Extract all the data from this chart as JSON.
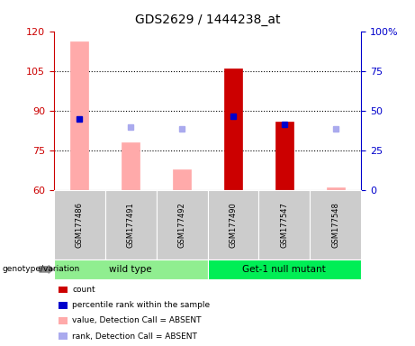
{
  "title": "GDS2629 / 1444238_at",
  "samples": [
    "GSM177486",
    "GSM177491",
    "GSM177492",
    "GSM177490",
    "GSM177547",
    "GSM177548"
  ],
  "groups": [
    {
      "name": "wild type",
      "color": "#90ee90",
      "samples": [
        0,
        1,
        2
      ]
    },
    {
      "name": "Get-1 null mutant",
      "color": "#00ee55",
      "samples": [
        3,
        4,
        5
      ]
    }
  ],
  "bar_values": [
    116,
    78,
    68,
    106,
    86,
    61
  ],
  "bar_colors": [
    "#ffaaaa",
    "#ffaaaa",
    "#ffaaaa",
    "#cc0000",
    "#cc0000",
    "#ffaaaa"
  ],
  "rank_squares": [
    87,
    84,
    83,
    88,
    85,
    83
  ],
  "rank_colors": [
    "#0000cc",
    "#aaaaee",
    "#aaaaee",
    "#0000cc",
    "#0000cc",
    "#aaaaee"
  ],
  "ymin": 60,
  "ymax": 120,
  "yticks_left": [
    60,
    75,
    90,
    105,
    120
  ],
  "yticks_right": [
    0,
    25,
    50,
    75,
    100
  ],
  "yright_min": 0,
  "yright_max": 100,
  "grid_values": [
    75,
    90,
    105
  ],
  "label_color_left": "#cc0000",
  "label_color_right": "#0000cc",
  "legend": [
    {
      "color": "#cc0000",
      "label": "count"
    },
    {
      "color": "#0000cc",
      "label": "percentile rank within the sample"
    },
    {
      "color": "#ffaaaa",
      "label": "value, Detection Call = ABSENT"
    },
    {
      "color": "#aaaaee",
      "label": "rank, Detection Call = ABSENT"
    }
  ]
}
